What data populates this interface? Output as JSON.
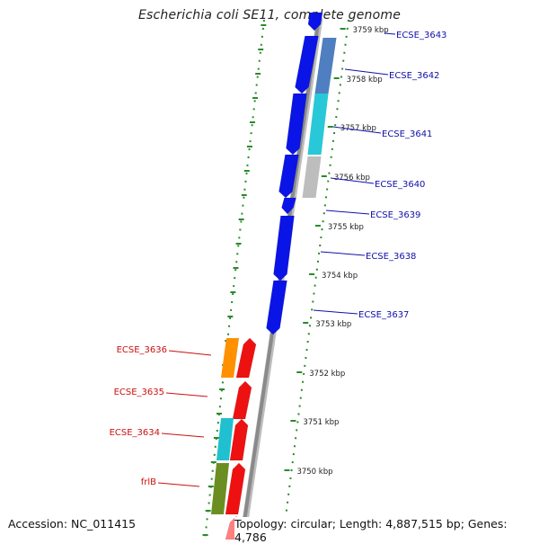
{
  "title": "Escherichia coli SE11, complete genome",
  "footer": {
    "accession": "Accession: NC_011415",
    "summary": "Topology: circular; Length: 4,887,515 bp; Genes: 4,786"
  },
  "colors": {
    "forward_gene": "#0a14e6",
    "reverse_gene": "#ee1111",
    "forward_label": "#1010aa",
    "reverse_label": "#cc1010",
    "backbone": "#8a8a8a",
    "tick": "#2a8a2a"
  },
  "ticks": [
    "3759 kbp",
    "3758 kbp",
    "3757 kbp",
    "3756 kbp",
    "3755 kbp",
    "3754 kbp",
    "3753 kbp",
    "3752 kbp",
    "3751 kbp",
    "3750 kbp"
  ],
  "forward_labels": [
    "ECSE_3643",
    "ECSE_3642",
    "ECSE_3641",
    "ECSE_3640",
    "ECSE_3639",
    "ECSE_3638",
    "ECSE_3637"
  ],
  "reverse_labels": [
    "ECSE_3636",
    "ECSE_3635",
    "ECSE_3634",
    "frlB"
  ]
}
